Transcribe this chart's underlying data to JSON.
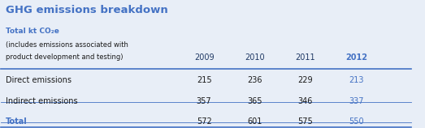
{
  "title": "GHG emissions breakdown",
  "subtitle_line1": "Total kt CO₂e",
  "subtitle_line2": "(includes emissions associated with",
  "subtitle_line3": "product development and testing)",
  "years": [
    "2009",
    "2010",
    "2011",
    "2012"
  ],
  "rows": [
    {
      "label": "Direct emissions",
      "values": [
        215,
        236,
        229,
        213
      ]
    },
    {
      "label": "Indirect emissions",
      "values": [
        357,
        365,
        346,
        337
      ]
    },
    {
      "label": "Total",
      "values": [
        572,
        601,
        575,
        550
      ]
    }
  ],
  "title_color": "#4472c4",
  "subtitle_color": "#4472c4",
  "header_color": "#1f3864",
  "body_color": "#1a1a1a",
  "highlight_color": "#4472c4",
  "line_color": "#4472c4",
  "bg_color": "#e8eef7",
  "year_cols": [
    0.48,
    0.6,
    0.72,
    0.84
  ],
  "thick_lw": 1.2,
  "thin_lw": 0.6
}
